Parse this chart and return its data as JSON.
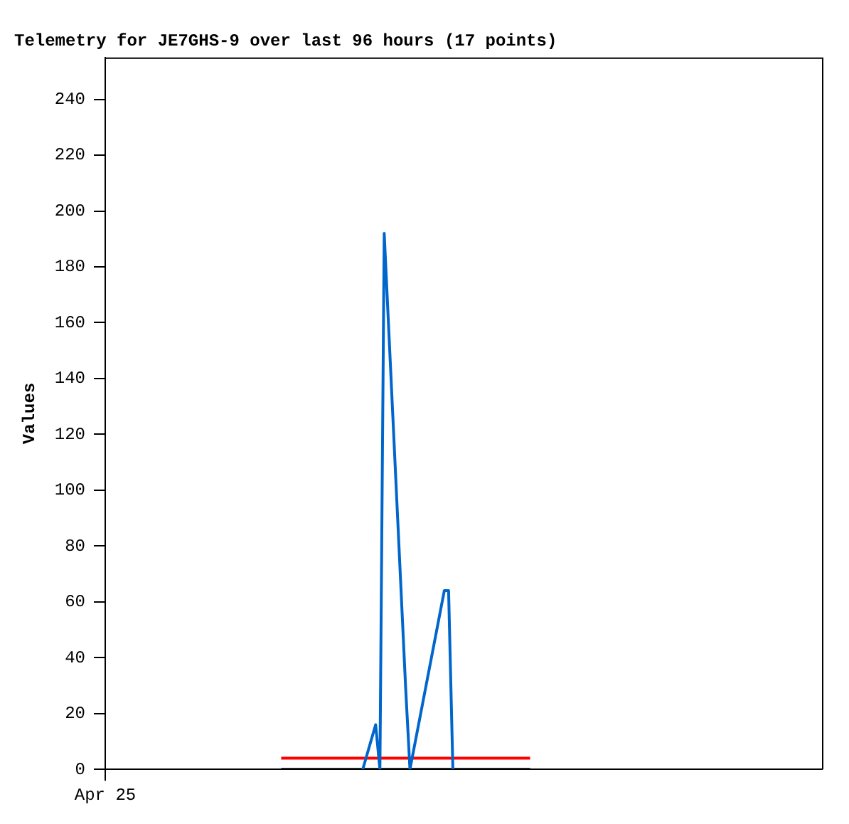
{
  "chart_data": {
    "type": "line",
    "title": "Telemetry for JE7GHS-9 over last 96 hours (17 points)",
    "ylabel": "Values",
    "categories": [
      "Apr 25",
      null,
      null,
      null,
      null,
      null,
      null,
      null,
      null,
      null,
      null,
      null,
      null,
      null,
      null,
      null,
      null,
      null,
      null,
      null,
      null,
      null,
      null,
      null,
      null,
      null,
      null,
      null,
      null,
      null,
      null,
      null,
      null,
      null,
      null,
      null,
      null,
      null,
      null,
      null,
      null,
      null,
      null,
      null,
      null,
      null,
      null,
      null,
      null,
      null,
      null,
      null,
      null,
      null,
      null,
      null,
      null,
      null,
      null,
      null,
      null,
      null,
      null,
      null,
      null,
      null,
      null,
      null,
      null,
      null,
      null,
      null,
      null,
      null,
      null,
      null,
      null,
      null,
      null,
      null,
      null,
      null,
      null,
      null,
      null,
      null,
      null,
      null,
      null,
      null,
      null,
      null,
      null,
      null,
      null,
      null,
      null,
      null,
      null,
      null,
      null,
      null,
      null,
      null,
      null,
      null,
      null,
      null,
      null,
      null,
      null,
      null,
      null,
      null,
      null,
      null,
      null,
      null,
      null,
      null,
      null,
      null,
      null,
      null,
      null,
      null,
      null,
      null,
      null,
      null,
      null,
      null,
      null,
      null,
      null,
      null,
      null,
      null,
      null,
      null,
      null,
      null,
      null,
      null,
      null,
      null,
      null,
      null,
      null,
      null,
      null,
      null,
      null,
      null,
      null,
      null,
      null,
      null,
      null,
      null,
      null,
      null,
      null,
      null,
      null,
      null,
      null,
      null
    ],
    "ylim": [
      0,
      255
    ],
    "yticks": [
      0,
      20,
      40,
      60,
      80,
      100,
      120,
      140,
      160,
      180,
      200,
      220,
      240
    ],
    "grid": false,
    "legend": false,
    "marker": "none",
    "line_style": "solid",
    "series": [
      {
        "color": "#0066cc",
        "values": [
          null,
          null,
          null,
          null,
          null,
          null,
          null,
          null,
          null,
          null,
          null,
          null,
          null,
          null,
          null,
          null,
          null,
          null,
          null,
          null,
          null,
          null,
          null,
          null,
          null,
          null,
          null,
          null,
          null,
          null,
          null,
          null,
          null,
          null,
          null,
          null,
          null,
          null,
          null,
          null,
          null,
          null,
          null,
          null,
          null,
          null,
          null,
          null,
          null,
          null,
          null,
          null,
          null,
          null,
          null,
          null,
          null,
          null,
          null,
          null,
          0,
          null,
          null,
          16,
          0,
          192,
          null,
          null,
          null,
          null,
          29,
          0,
          null,
          null,
          null,
          null,
          null,
          null,
          null,
          64,
          64,
          0,
          null,
          null,
          null,
          null,
          null,
          null,
          null,
          null,
          null,
          null,
          null,
          null,
          null,
          null,
          null,
          null,
          null,
          null,
          null,
          null,
          null,
          null,
          null,
          null,
          null,
          null,
          null,
          null,
          null,
          null,
          null,
          null,
          null,
          null,
          null,
          null,
          null,
          null,
          null,
          null,
          null,
          null,
          null,
          null,
          null,
          null,
          null,
          null,
          null,
          null,
          null,
          null,
          null,
          null,
          null,
          null,
          null,
          null,
          null,
          null,
          null,
          null,
          null,
          null,
          null,
          null,
          null,
          null,
          null,
          null,
          null,
          null,
          null,
          null,
          null,
          null,
          null,
          null,
          null,
          null,
          null,
          null,
          null,
          null,
          null,
          null
        ]
      },
      {
        "color": "#ff0000",
        "values": [
          null,
          null,
          null,
          null,
          null,
          null,
          null,
          null,
          null,
          null,
          null,
          null,
          null,
          null,
          null,
          null,
          null,
          null,
          null,
          null,
          null,
          null,
          null,
          null,
          null,
          null,
          null,
          null,
          null,
          null,
          null,
          null,
          null,
          null,
          null,
          null,
          null,
          null,
          null,
          null,
          null,
          4,
          null,
          null,
          null,
          null,
          null,
          null,
          null,
          null,
          null,
          null,
          null,
          null,
          null,
          null,
          null,
          null,
          null,
          null,
          null,
          null,
          null,
          null,
          null,
          null,
          null,
          null,
          null,
          null,
          null,
          null,
          null,
          null,
          null,
          null,
          null,
          null,
          null,
          null,
          null,
          null,
          null,
          null,
          null,
          null,
          null,
          null,
          null,
          null,
          null,
          null,
          null,
          null,
          null,
          null,
          null,
          null,
          null,
          4,
          null,
          null,
          null,
          null,
          null,
          null,
          null,
          null,
          null,
          null,
          null,
          null,
          null,
          null,
          null,
          null,
          null,
          null,
          null,
          null,
          null,
          null,
          null,
          null,
          null,
          null,
          null,
          null,
          null,
          null,
          null,
          null,
          null,
          null,
          null,
          null,
          null,
          null,
          null,
          null,
          null,
          null,
          null,
          null,
          null,
          null,
          null,
          null,
          null,
          null,
          null,
          null,
          null,
          null,
          null,
          null,
          null,
          null,
          null,
          null,
          null,
          null,
          null,
          null,
          null,
          null,
          null,
          null
        ]
      },
      {
        "color": "#000000",
        "values": [
          null,
          null,
          null,
          null,
          null,
          null,
          null,
          null,
          null,
          null,
          null,
          null,
          null,
          null,
          null,
          null,
          null,
          null,
          null,
          null,
          null,
          null,
          null,
          null,
          null,
          null,
          null,
          null,
          null,
          null,
          null,
          null,
          null,
          null,
          null,
          null,
          null,
          null,
          null,
          null,
          null,
          0,
          null,
          null,
          null,
          null,
          null,
          null,
          null,
          null,
          null,
          null,
          null,
          null,
          null,
          null,
          null,
          null,
          null,
          null,
          null,
          null,
          null,
          null,
          null,
          null,
          null,
          null,
          null,
          null,
          null,
          null,
          null,
          null,
          null,
          null,
          null,
          null,
          null,
          null,
          null,
          null,
          null,
          null,
          null,
          null,
          null,
          null,
          null,
          null,
          null,
          null,
          null,
          null,
          null,
          null,
          null,
          null,
          null,
          0,
          null,
          null,
          null,
          null,
          null,
          null,
          null,
          null,
          null,
          null,
          null,
          null,
          null,
          null,
          null,
          null,
          null,
          null,
          null,
          null,
          null,
          null,
          null,
          null,
          null,
          null,
          null,
          null,
          null,
          null,
          null,
          null,
          null,
          null,
          null,
          null,
          null,
          null,
          null,
          null,
          null,
          null,
          null,
          null,
          null,
          null,
          null,
          null,
          null,
          null,
          null,
          null,
          null,
          null,
          null,
          null,
          null,
          null,
          null,
          null,
          null,
          null,
          null,
          null,
          null,
          null,
          null,
          null
        ]
      }
    ]
  }
}
